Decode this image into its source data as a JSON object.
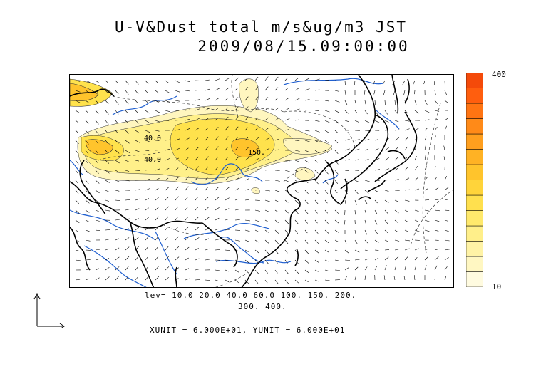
{
  "title": {
    "line1": "U-V&Dust total m/s&ug/m3 JST",
    "line2": "2009/08/15.09:00:00"
  },
  "colorbar": {
    "max_label": "400",
    "min_label": "10",
    "colors": [
      "#fffbe0",
      "#fff7c2",
      "#fff3a6",
      "#ffef8a",
      "#ffe96c",
      "#ffe04e",
      "#ffd43a",
      "#ffc42c",
      "#ffb224",
      "#ff9f1e",
      "#ff8a18",
      "#ff7412",
      "#ff5e0e",
      "#f44a0a"
    ]
  },
  "contours": {
    "levels_line1": "lev= 10.0 20.0 40.0 60.0 100. 150. 200.",
    "levels_line2": "300. 400.",
    "labels": [
      "40.0",
      "40.0",
      "150."
    ]
  },
  "units_line": "XUNIT = 6.000E+01, YUNIT = 6.000E+01",
  "colors": {
    "coast": "#000000",
    "rivers": "#1f5fd0",
    "wind_vectors": "#000000"
  },
  "icons": [
    "reference-vector-icon"
  ]
}
